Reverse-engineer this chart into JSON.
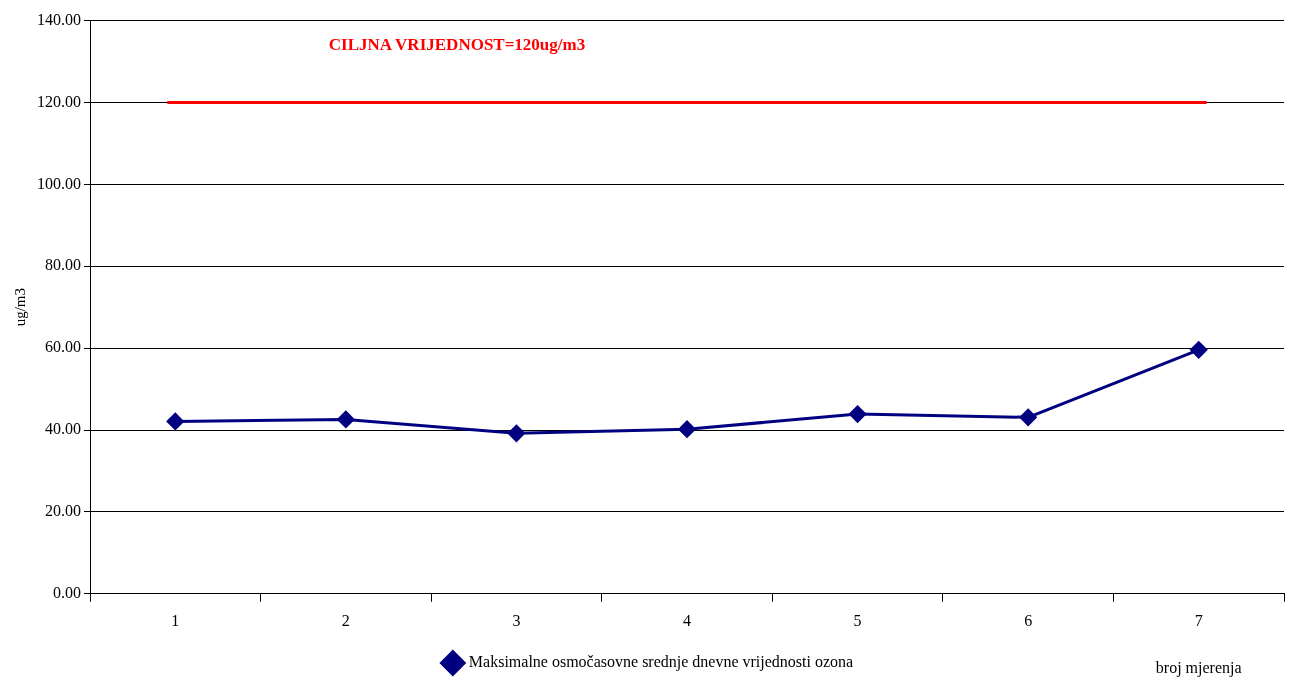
{
  "chart_data": {
    "type": "line",
    "xlabel": "broj mjerenja",
    "ylabel": "ug/m3",
    "categories": [
      "1",
      "2",
      "3",
      "4",
      "5",
      "6",
      "7"
    ],
    "series": [
      {
        "name": "Maksimalne osmočasovne srednje dnevne vrijednosti ozona",
        "color": "#000080",
        "values": [
          42.1,
          42.6,
          39.2,
          40.2,
          43.9,
          43.1,
          59.6
        ]
      }
    ],
    "ylim": [
      0,
      140
    ],
    "yticks": [
      {
        "value": 0,
        "label": "0.00"
      },
      {
        "value": 20,
        "label": "20.00"
      },
      {
        "value": 40,
        "label": "40.00"
      },
      {
        "value": 60,
        "label": "60.00"
      },
      {
        "value": 80,
        "label": "80.00"
      },
      {
        "value": 100,
        "label": "100.00"
      },
      {
        "value": 120,
        "label": "120.00"
      },
      {
        "value": 140,
        "label": "140.00"
      }
    ],
    "ref_lines": [
      {
        "axis": "y",
        "value": 120,
        "label": "CILJNA VRIJEDNOST=120ug/m3",
        "color": "#ff0000"
      }
    ],
    "grid": "y",
    "legend": "bottom",
    "marker": "diamond",
    "line_style": "solid"
  }
}
